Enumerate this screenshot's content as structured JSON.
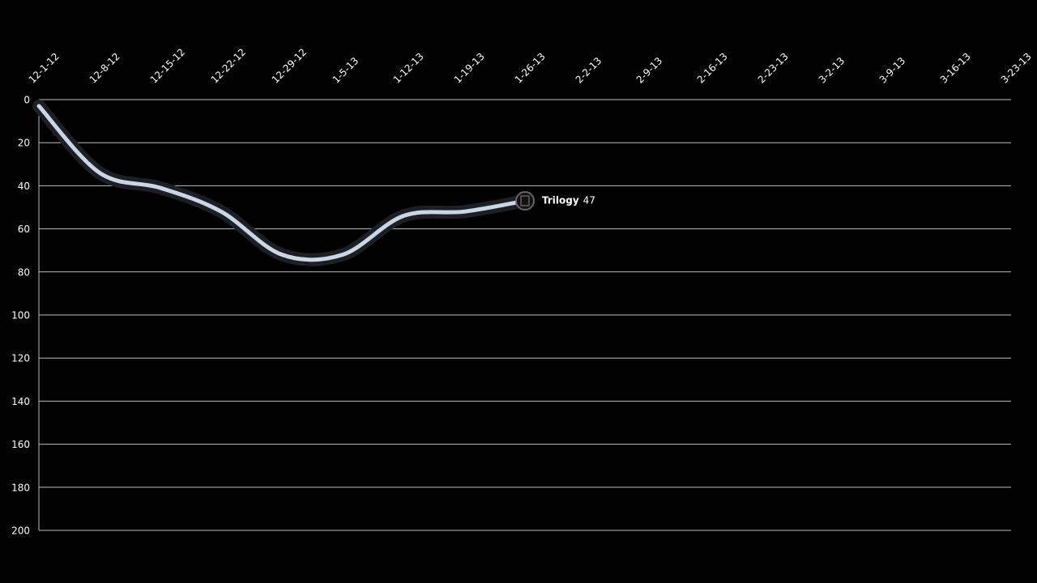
{
  "chart_data": {
    "type": "line",
    "categories": [
      "12-1-12",
      "12-8-12",
      "12-15-12",
      "12-22-12",
      "12-29-12",
      "1-5-13",
      "1-12-13",
      "1-19-13",
      "1-26-13",
      "2-2-13",
      "2-9-13",
      "2-16-13",
      "2-23-13",
      "3-2-13",
      "3-9-13",
      "3-16-13",
      "3-23-13"
    ],
    "series": [
      {
        "name": "Trilogy",
        "color": "#c9d6e3",
        "values": [
          3,
          34,
          41,
          52,
          72,
          72,
          54,
          52,
          47,
          null,
          null,
          null,
          null,
          null,
          null,
          null,
          null
        ]
      }
    ],
    "ylim": [
      200,
      0
    ],
    "yticks": [
      0,
      20,
      40,
      60,
      80,
      100,
      120,
      140,
      160,
      180,
      200
    ],
    "grid": true
  }
}
